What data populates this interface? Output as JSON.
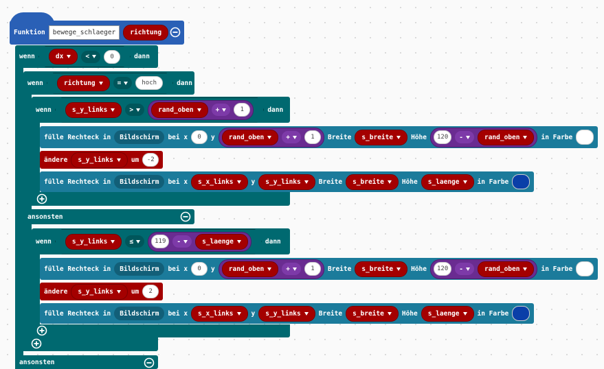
{
  "function": {
    "keyword": "Funktion",
    "name": "bewege_schlaeger",
    "param": "richtung"
  },
  "outer_if": {
    "keyword": "wenn",
    "condition": {
      "left": "dx",
      "op": "<",
      "right": 0
    },
    "then": "dann",
    "else": "ansonsten"
  },
  "inner_if": {
    "keyword": "wenn",
    "condition": {
      "left": "richtung",
      "op": "=",
      "right": "hoch"
    },
    "then": "dann",
    "else": "ansonsten"
  },
  "upper_if": {
    "keyword": "wenn",
    "condition": {
      "left": "s_y_links",
      "op": ">",
      "right": {
        "left": "rand_oben",
        "op": "+",
        "right": 1
      }
    },
    "then": "dann",
    "fill_1": {
      "keyword": "fülle Rechteck in",
      "target": "Bildschirm",
      "x_label": "bei x",
      "x": 0,
      "y_label": "y",
      "y": {
        "left": "rand_oben",
        "op": "+",
        "right": 1
      },
      "width_label": "Breite",
      "width": "s_breite",
      "height_label": "Höhe",
      "height": {
        "left": 120,
        "op": "-",
        "right": "rand_oben"
      },
      "color_label": "in Farbe"
    },
    "change": {
      "keyword": "ändere",
      "variable": "s_y_links",
      "by": "um",
      "value": -2
    },
    "fill_2": {
      "keyword": "fülle Rechteck in",
      "target": "Bildschirm",
      "x_label": "bei x",
      "x": "s_x_links",
      "y_label": "y",
      "y": "s_y_links",
      "width_label": "Breite",
      "width": "s_breite",
      "height_label": "Höhe",
      "height": "s_laenge",
      "color_label": "in Farbe"
    }
  },
  "lower_if": {
    "keyword": "wenn",
    "condition": {
      "left": "s_y_links",
      "op": "≤",
      "right": {
        "left": 119,
        "op": "-",
        "right": "s_laenge"
      }
    },
    "then": "dann",
    "fill_1": {
      "keyword": "fülle Rechteck in",
      "target": "Bildschirm",
      "x_label": "bei x",
      "x": 0,
      "y_label": "y",
      "y": {
        "left": "rand_oben",
        "op": "+",
        "right": 1
      },
      "width_label": "Breite",
      "width": "s_breite",
      "height_label": "Höhe",
      "height": {
        "left": 120,
        "op": "-",
        "right": "rand_oben"
      },
      "color_label": "in Farbe"
    },
    "change": {
      "keyword": "ändere",
      "variable": "s_y_links",
      "by": "um",
      "value": 2
    },
    "fill_2": {
      "keyword": "fülle Rechteck in",
      "target": "Bildschirm",
      "x_label": "bei x",
      "x": "s_x_links",
      "y_label": "y",
      "y": "s_y_links",
      "width_label": "Breite",
      "width": "s_breite",
      "height_label": "Höhe",
      "height": "s_laenge",
      "color_label": "in Farbe"
    }
  }
}
